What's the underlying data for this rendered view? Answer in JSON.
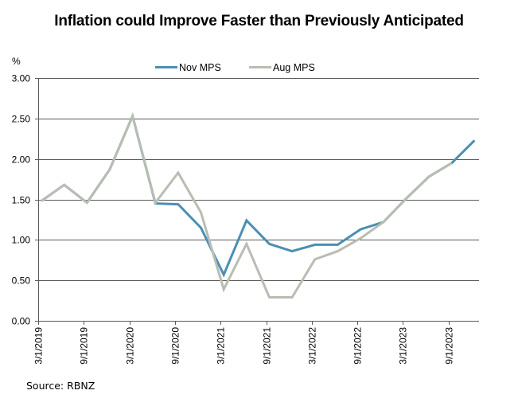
{
  "chart_data": {
    "type": "line",
    "title": "Inflation could Improve Faster than Previously Anticipated",
    "ylabel": "%",
    "xlabel": "",
    "ylim": [
      0,
      3
    ],
    "yticks": [
      "0.00",
      "0.50",
      "1.00",
      "1.50",
      "2.00",
      "2.50",
      "3.00"
    ],
    "ytick_values": [
      0,
      0.5,
      1,
      1.5,
      2,
      2.5,
      3
    ],
    "xtick_labels": [
      "3/1/2019",
      "9/1/2019",
      "3/1/2020",
      "9/1/2020",
      "3/1/2021",
      "9/1/2021",
      "3/1/2022",
      "9/1/2022",
      "3/1/2023",
      "9/1/2023"
    ],
    "x": [
      "3/1/2019",
      "6/1/2019",
      "9/1/2019",
      "12/1/2019",
      "3/1/2020",
      "6/1/2020",
      "9/1/2020",
      "12/1/2020",
      "3/1/2021",
      "6/1/2021",
      "9/1/2021",
      "12/1/2021",
      "3/1/2022",
      "6/1/2022",
      "9/1/2022",
      "12/1/2022",
      "3/1/2023",
      "6/1/2023",
      "9/1/2023",
      "12/1/2023"
    ],
    "grid": true,
    "legend": "top-center",
    "series": [
      {
        "name": "Nov MPS",
        "color": "#4a8fb5",
        "values": [
          1.48,
          1.68,
          1.46,
          1.87,
          2.53,
          1.45,
          1.44,
          1.15,
          0.57,
          1.24,
          0.95,
          0.86,
          0.94,
          0.94,
          1.13,
          1.22,
          1.51,
          1.78,
          1.95,
          2.23
        ]
      },
      {
        "name": "Aug MPS",
        "color": "#b9bdb2",
        "values": [
          1.48,
          1.68,
          1.46,
          1.87,
          2.53,
          1.46,
          1.83,
          1.34,
          0.39,
          0.95,
          0.29,
          0.29,
          0.76,
          0.86,
          1.02,
          1.22,
          1.51,
          1.78,
          1.95,
          null
        ]
      }
    ]
  },
  "source": "Source: RBNZ"
}
